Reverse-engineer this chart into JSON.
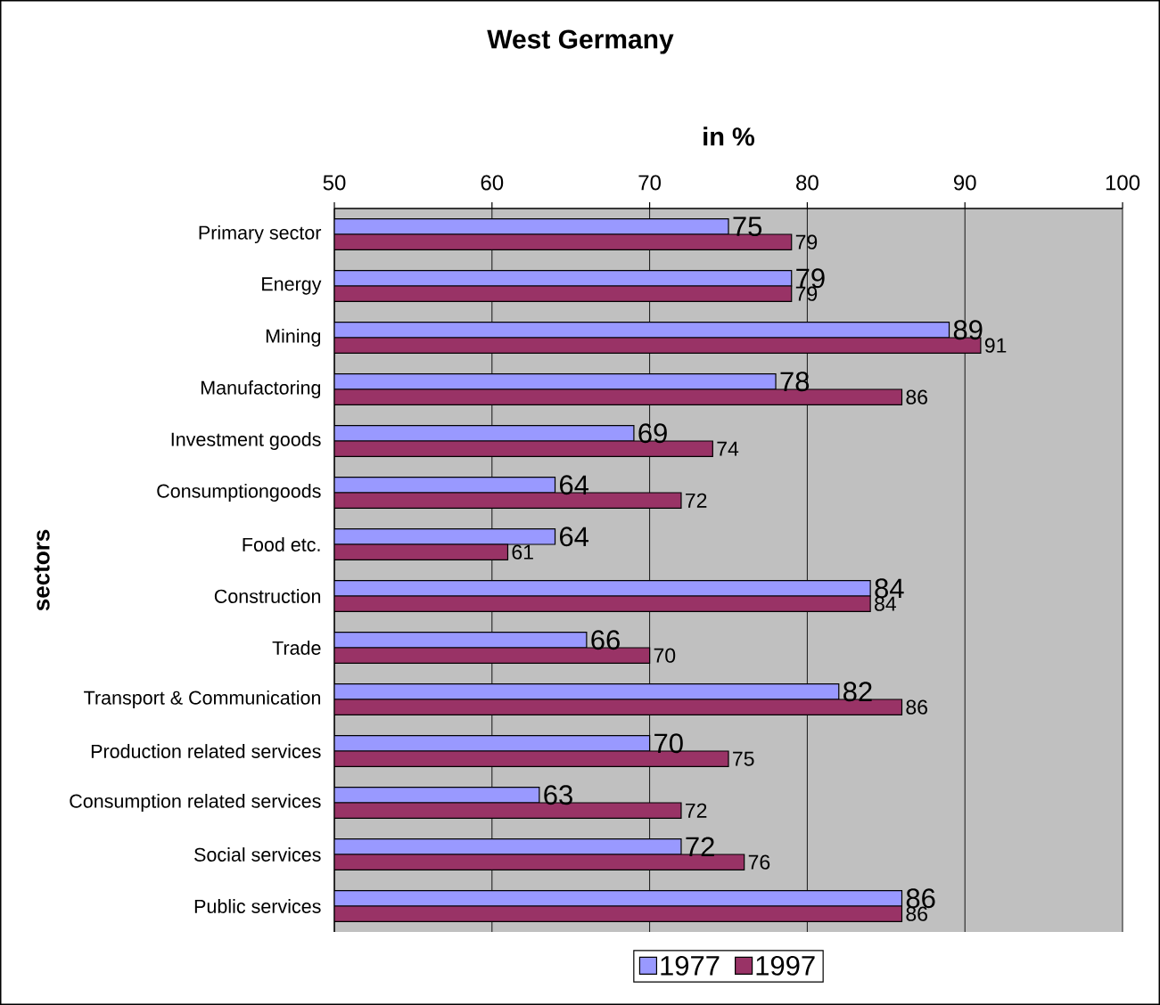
{
  "chart_data": {
    "type": "bar",
    "orientation": "horizontal",
    "title": "West Germany",
    "xlabel": "in %",
    "ylabel": "sectors",
    "categories": [
      "Primary sector",
      "Energy",
      "Mining",
      "Manufactoring",
      "Investment goods",
      "Consumptiongoods",
      "Food etc.",
      "Construction",
      "Trade",
      "Transport & Communication",
      "Production related services",
      "Consumption related services",
      "Social services",
      "Public services"
    ],
    "series": [
      {
        "name": "1977",
        "color": "#9999ff",
        "values": [
          75,
          79,
          89,
          78,
          69,
          64,
          64,
          84,
          66,
          82,
          70,
          63,
          72,
          86
        ]
      },
      {
        "name": "1997",
        "color": "#993366",
        "values": [
          79,
          79,
          91,
          86,
          74,
          72,
          61,
          84,
          70,
          86,
          75,
          72,
          76,
          86
        ]
      }
    ],
    "xlim": [
      50,
      100
    ],
    "xticks": [
      50,
      60,
      70,
      80,
      90,
      100
    ],
    "grid": "x",
    "legend": "bottom",
    "data_labels": true
  }
}
